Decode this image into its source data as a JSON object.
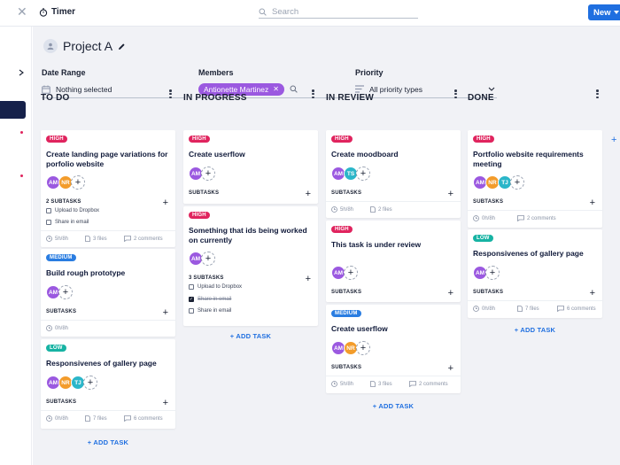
{
  "app": {
    "title": "Timer",
    "new_label": "New"
  },
  "search": {
    "placeholder": "Search"
  },
  "project": {
    "title": "Project A"
  },
  "filters": {
    "date": {
      "label": "Date Range",
      "value": "Nothing selected"
    },
    "members": {
      "label": "Members",
      "chip": "Antionette Martinez"
    },
    "priority": {
      "label": "Priority",
      "value": "All priority types"
    }
  },
  "columns": [
    {
      "title": "TO DO",
      "add": "+ ADD TASK",
      "cards": [
        {
          "tag": "HIGH",
          "title": "Create landing page variations for porfolio website",
          "subtasks_label": "2 SUBTASKS",
          "checks": [
            {
              "text": "Upload to Dropbox"
            },
            {
              "text": "Share in email"
            }
          ],
          "time": "5h/8h",
          "files": "3 files",
          "comments": "2 comments"
        },
        {
          "tag": "MEDIUM",
          "title": "Build rough prototype",
          "subtasks_label": "SUBTASKS",
          "time": "0h/8h"
        },
        {
          "tag": "LOW",
          "title": "Responsivenes of gallery page",
          "subtasks_label": "SUBTASKS",
          "time": "0h/8h",
          "files": "7 files",
          "comments": "6 comments"
        }
      ]
    },
    {
      "title": "IN PROGRESS",
      "add": "+ ADD TASK",
      "cards": [
        {
          "tag": "HIGH",
          "title": "Create userflow",
          "subtasks_label": "SUBTASKS"
        },
        {
          "tag": "HIGH",
          "title": "Something that ids being worked on currently",
          "subtasks_label": "3 SUBTASKS",
          "checks": [
            {
              "text": "Upload to Dropbox"
            },
            {
              "text": "Share in email"
            },
            {
              "text": "Share in email"
            }
          ]
        }
      ]
    },
    {
      "title": "IN REVIEW",
      "add": "+ ADD TASK",
      "cards": [
        {
          "tag": "HIGH",
          "title": "Create moodboard",
          "subtasks_label": "SUBTASKS",
          "time": "5h/8h",
          "files": "2 files"
        },
        {
          "tag": "HIGH",
          "title": "This task is under review",
          "subtasks_label": "SUBTASKS"
        },
        {
          "tag": "MEDIUM",
          "title": "Create userflow",
          "subtasks_label": "SUBTASKS",
          "time": "5h/8h",
          "files": "3 files",
          "comments": "2 comments"
        }
      ]
    },
    {
      "title": "DONE",
      "add": "+ ADD TASK",
      "cards": [
        {
          "tag": "HIGH",
          "title": "Portfolio website requirements meeting",
          "subtasks_label": "SUBTASKS",
          "time": "0h/8h",
          "comments": "2 comments"
        },
        {
          "tag": "LOW",
          "title": "Responsivenes of gallery page",
          "subtasks_label": "SUBTASKS",
          "time": "0h/8h",
          "files": "7 files",
          "comments": "6 comments"
        }
      ]
    }
  ],
  "avatars": {
    "am": "AM",
    "nr": "NR",
    "tj": "TJ",
    "ts": "TS"
  },
  "colors": {
    "accent": "#1f6fe0",
    "high": "#e0245e",
    "medium": "#2a7de1",
    "low": "#17b3a3",
    "am": "#9b59e0",
    "nr": "#f39c2b",
    "tj": "#2bb6c9",
    "ts": "#2bb6c9"
  }
}
